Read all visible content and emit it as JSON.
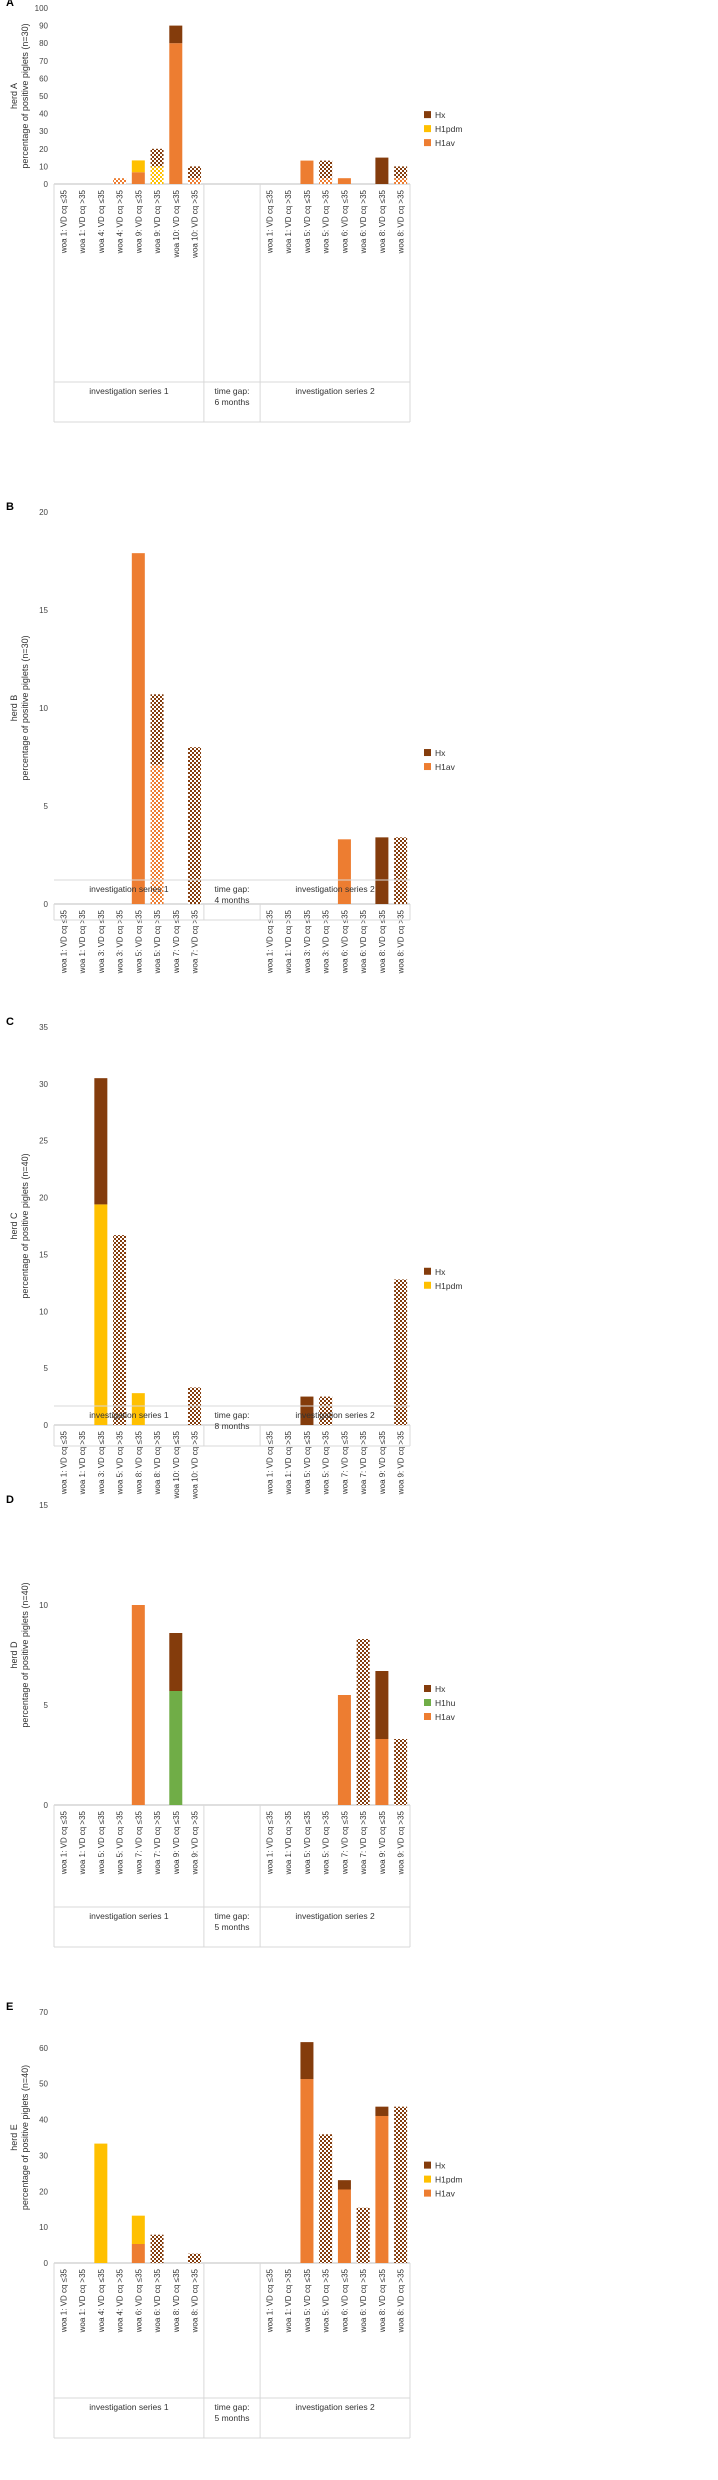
{
  "colors": {
    "Hx": "#843C0C",
    "H1pdm": "#FFC000",
    "H1av": "#ED7D31",
    "H1hu": "#70AD47"
  },
  "chart_data": [
    {
      "type": "bar",
      "panel_label": "A",
      "ylabel_outer": "herd A",
      "ylabel": "percentage of positive piglets (n=30)",
      "ylim": [
        0,
        100
      ],
      "yticks": [
        0,
        10,
        20,
        30,
        40,
        50,
        60,
        70,
        80,
        90,
        100
      ],
      "legend": [
        "Hx",
        "H1pdm",
        "H1av"
      ],
      "categories": [
        "woa 1: VD cq ≤35",
        "woa 1: VD cq >35",
        "woa 4: VD cq ≤35",
        "woa 4: VD cq >35",
        "woa 9: VD cq ≤35",
        "woa 9: VD cq >35",
        "woa 10: VD cq ≤35",
        "woa 10: VD cq >35",
        "",
        "",
        "",
        "woa 1: VD cq ≤35",
        "woa 1: VD cq >35",
        "woa 5: VD cq ≤35",
        "woa 5: VD cq >35",
        "woa 6: VD cq ≤35",
        "woa 6: VD cq >35",
        "woa 8: VD cq ≤35",
        "woa 8: VD cq >35"
      ],
      "series": [
        {
          "name": "H1av",
          "values": [
            0,
            0,
            0,
            3.3,
            6.7,
            0,
            80,
            3.3,
            0,
            0,
            0,
            0,
            0,
            13.3,
            3.3,
            3.3,
            0,
            0,
            3.3
          ]
        },
        {
          "name": "H1pdm",
          "values": [
            0,
            0,
            0,
            0,
            6.7,
            10,
            0,
            0,
            0,
            0,
            0,
            0,
            0,
            0,
            0,
            0,
            0,
            0,
            0
          ]
        },
        {
          "name": "Hx",
          "values": [
            0,
            0,
            0,
            0,
            0,
            10,
            10,
            6.7,
            0,
            0,
            0,
            0,
            0,
            0,
            10,
            0,
            0,
            15,
            6.7
          ]
        }
      ],
      "groups": [
        {
          "label": "investigation series 1",
          "start": 0,
          "end": 7
        },
        {
          "label": "time gap: 6 months",
          "start": 8,
          "end": 10
        },
        {
          "label": "investigation series 2",
          "start": 11,
          "end": 18
        }
      ]
    },
    {
      "type": "bar",
      "panel_label": "B",
      "ylabel_outer": "herd B",
      "ylabel": "percentage of positive piglets (n=30)",
      "ylim": [
        0,
        20
      ],
      "yticks": [
        0,
        5,
        10,
        15,
        20
      ],
      "legend": [
        "Hx",
        "H1av"
      ],
      "categories": [
        "woa 1: VD cq ≤35",
        "woa 1: VD cq >35",
        "woa 3: VD cq ≤35",
        "woa 3: VD cq >35",
        "woa 5: VD cq ≤35",
        "woa 5: VD cq >35",
        "woa 7: VD cq ≤35",
        "woa 7: VD cq >35",
        "",
        "",
        "",
        "woa 1: VD cq ≤35",
        "woa 1: VD cq >35",
        "woa 3: VD cq ≤35",
        "woa 3: VD cq >35",
        "woa 6: VD cq ≤35",
        "woa 6: VD cq >35",
        "woa 8: VD cq ≤35",
        "woa 8: VD cq >35"
      ],
      "series": [
        {
          "name": "H1av",
          "values": [
            0,
            0,
            0,
            0,
            17.9,
            7.1,
            0,
            0,
            0,
            0,
            0,
            0,
            0,
            0,
            0,
            3.3,
            0,
            0,
            0
          ]
        },
        {
          "name": "Hx",
          "values": [
            0,
            0,
            0,
            0,
            0,
            3.6,
            0,
            8.0,
            0,
            0,
            0,
            0,
            0,
            0,
            0,
            0,
            0,
            3.4,
            3.4
          ]
        }
      ],
      "groups": [
        {
          "label": "investigation series 1",
          "start": 0,
          "end": 7
        },
        {
          "label": "time gap: 4 months",
          "start": 8,
          "end": 10
        },
        {
          "label": "investigation series 2",
          "start": 11,
          "end": 18
        }
      ]
    },
    {
      "type": "bar",
      "panel_label": "C",
      "ylabel_outer": "herd C",
      "ylabel": "percentage of positive piglets (n=40)",
      "ylim": [
        0,
        35
      ],
      "yticks": [
        0,
        5,
        10,
        15,
        20,
        25,
        30,
        35
      ],
      "legend": [
        "Hx",
        "H1pdm"
      ],
      "categories": [
        "woa 1: VD cq ≤35",
        "woa 1: VD cq >35",
        "woa 3: VD cq ≤35",
        "woa 5: VD cq >35",
        "woa 8: VD cq ≤35",
        "woa 8: VD cq >35",
        "woa 10: VD cq ≤35",
        "woa 10: VD cq >35",
        "",
        "",
        "",
        "woa 1: VD cq ≤35",
        "woa 1: VD cq >35",
        "woa 5: VD cq ≤35",
        "woa 5: VD cq >35",
        "woa 7: VD cq ≤35",
        "woa 7: VD cq >35",
        "woa 9: VD cq ≤35",
        "woa 9: VD cq >35"
      ],
      "series": [
        {
          "name": "H1pdm",
          "values": [
            0,
            0,
            19.4,
            0,
            2.8,
            0,
            0,
            0,
            0,
            0,
            0,
            0,
            0,
            0,
            0,
            0,
            0,
            0,
            0
          ]
        },
        {
          "name": "Hx",
          "values": [
            0,
            0,
            11.1,
            16.7,
            0,
            0,
            0,
            3.3,
            0,
            0,
            0,
            0,
            0,
            2.5,
            2.5,
            0,
            0,
            0,
            12.8
          ]
        }
      ],
      "groups": [
        {
          "label": "investigation series 1",
          "start": 0,
          "end": 7
        },
        {
          "label": "time gap: 8 months",
          "start": 8,
          "end": 10
        },
        {
          "label": "investigation series 2",
          "start": 11,
          "end": 18
        }
      ]
    },
    {
      "type": "bar",
      "panel_label": "D",
      "ylabel_outer": "herd D",
      "ylabel": "percentage of positive piglets (n=40)",
      "ylim": [
        0,
        15
      ],
      "yticks": [
        0,
        5,
        10,
        15
      ],
      "legend": [
        "Hx",
        "H1hu",
        "H1av"
      ],
      "categories": [
        "woa 1: VD cq ≤35",
        "woa 1: VD cq >35",
        "woa 5: VD cq ≤35",
        "woa 5: VD cq >35",
        "woa 7: VD cq ≤35",
        "woa 7: VD cq >35",
        "woa 9: VD cq ≤35",
        "woa 9: VD cq >35",
        "",
        "",
        "",
        "woa 1: VD cq ≤35",
        "woa 1: VD cq >35",
        "woa 5: VD cq ≤35",
        "woa 5: VD cq >35",
        "woa 7: VD cq ≤35",
        "woa 7: VD cq >35",
        "woa 9: VD cq ≤35",
        "woa 9: VD cq >35"
      ],
      "series": [
        {
          "name": "H1av",
          "values": [
            0,
            0,
            0,
            0,
            10,
            0,
            0,
            0,
            0,
            0,
            0,
            0,
            0,
            0,
            0,
            5.5,
            0,
            3.3,
            0
          ]
        },
        {
          "name": "H1hu",
          "values": [
            0,
            0,
            0,
            0,
            0,
            0,
            5.7,
            0,
            0,
            0,
            0,
            0,
            0,
            0,
            0,
            0,
            0,
            0,
            0
          ]
        },
        {
          "name": "Hx",
          "values": [
            0,
            0,
            0,
            0,
            0,
            0,
            2.9,
            0,
            0,
            0,
            0,
            0,
            0,
            0,
            0,
            0,
            8.3,
            3.4,
            3.3
          ]
        }
      ],
      "groups": [
        {
          "label": "investigation series 1",
          "start": 0,
          "end": 7
        },
        {
          "label": "time gap: 5 months",
          "start": 8,
          "end": 10
        },
        {
          "label": "investigation series 2",
          "start": 11,
          "end": 18
        }
      ]
    },
    {
      "type": "bar",
      "panel_label": "E",
      "ylabel_outer": "herd E",
      "ylabel": "percentage of positive piglets (n=40)",
      "ylim": [
        0,
        70
      ],
      "yticks": [
        0,
        10,
        20,
        30,
        40,
        50,
        60,
        70
      ],
      "legend": [
        "Hx",
        "H1pdm",
        "H1av"
      ],
      "categories": [
        "woa 1: VD cq ≤35",
        "woa 1: VD cq >35",
        "woa 4: VD cq ≤35",
        "woa 4: VD cq >35",
        "woa 6: VD cq ≤35",
        "woa 6: VD cq >35",
        "woa 8: VD cq ≤35",
        "woa 8: VD cq >35",
        "",
        "",
        "",
        "woa 1: VD cq ≤35",
        "woa 1: VD cq >35",
        "woa 5: VD cq ≤35",
        "woa 5: VD cq >35",
        "woa 6: VD cq ≤35",
        "woa 6: VD cq >35",
        "woa 8: VD cq ≤35",
        "woa 8: VD cq >35"
      ],
      "series": [
        {
          "name": "H1av",
          "values": [
            0,
            0,
            0,
            0,
            5.3,
            0,
            0,
            0,
            0,
            0,
            0,
            0,
            0,
            51.3,
            0,
            20.5,
            0,
            41,
            0
          ]
        },
        {
          "name": "H1pdm",
          "values": [
            0,
            0,
            33.3,
            0,
            7.9,
            0,
            0,
            0,
            0,
            0,
            0,
            0,
            0,
            0,
            0,
            0,
            0,
            0,
            0
          ]
        },
        {
          "name": "Hx",
          "values": [
            0,
            0,
            0,
            0,
            0,
            7.9,
            0,
            2.6,
            0,
            0,
            0,
            0,
            0,
            10.3,
            35.9,
            2.6,
            15.4,
            2.6,
            43.6
          ]
        }
      ],
      "groups": [
        {
          "label": "investigation series 1",
          "start": 0,
          "end": 7
        },
        {
          "label": "time gap: 5 months",
          "start": 8,
          "end": 10
        },
        {
          "label": "investigation series 2",
          "start": 11,
          "end": 18
        }
      ]
    }
  ]
}
